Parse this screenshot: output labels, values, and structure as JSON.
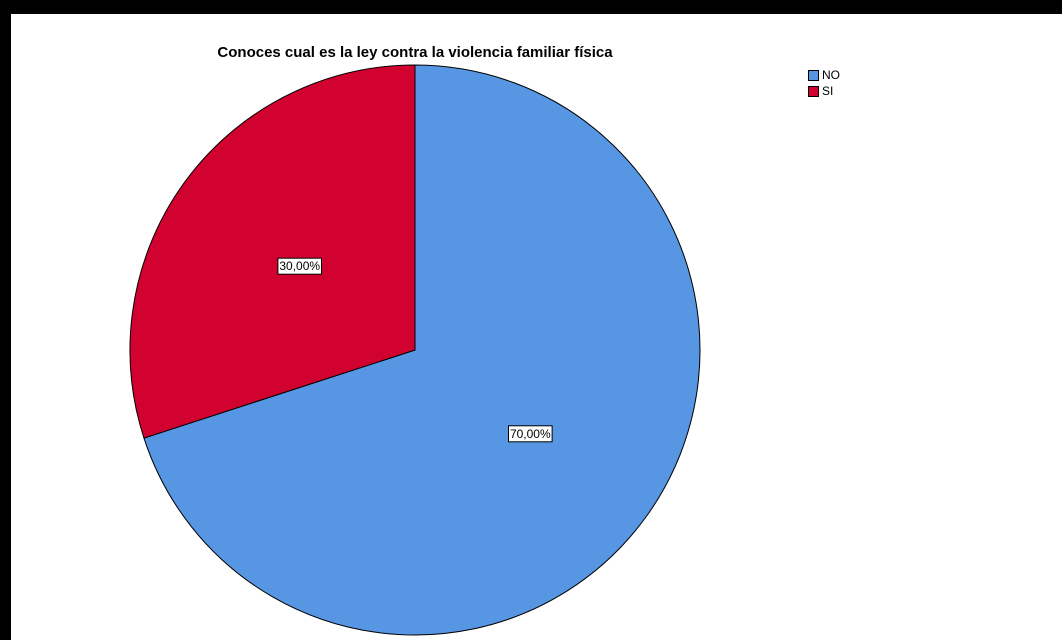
{
  "chart_data": {
    "type": "pie",
    "title": "Conoces cual es la ley contra la violencia familiar física",
    "categories": [
      "NO",
      "SI"
    ],
    "values": [
      70.0,
      30.0
    ],
    "labels": [
      "70,00%",
      "30,00%"
    ],
    "colors": [
      "#5696e3",
      "#d20230"
    ],
    "legend_position": "top-right",
    "start_angle_deg": 0,
    "direction": "clockwise"
  },
  "legend": {
    "items": [
      {
        "label": "NO",
        "color": "#5696e3"
      },
      {
        "label": "SI",
        "color": "#d20230"
      }
    ]
  }
}
